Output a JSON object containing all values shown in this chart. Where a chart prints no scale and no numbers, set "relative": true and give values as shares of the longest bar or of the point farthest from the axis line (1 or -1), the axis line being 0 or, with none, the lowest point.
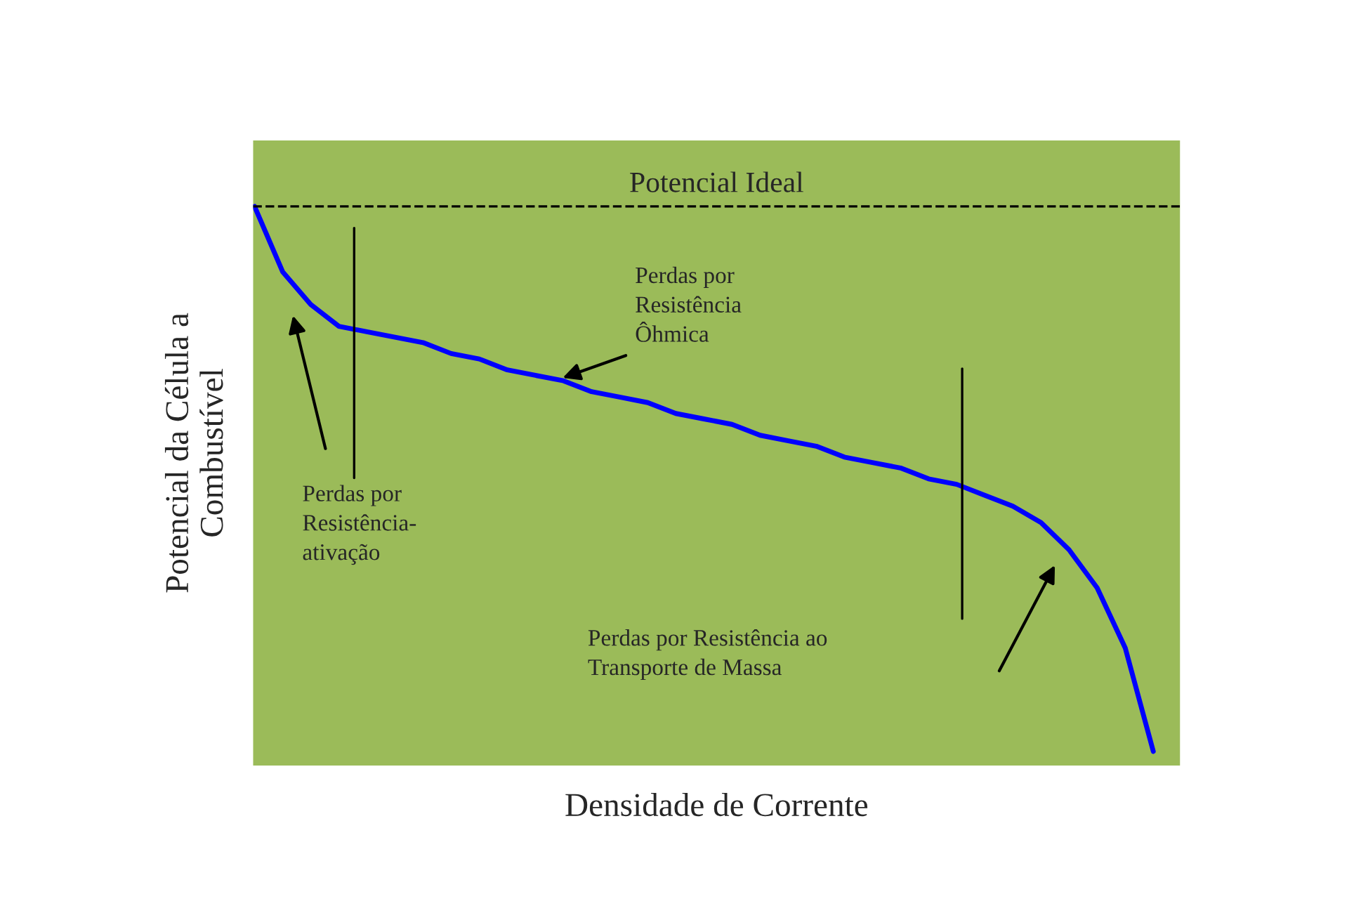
{
  "chart_data": {
    "type": "line",
    "relative": true,
    "xlabel": "Densidade de Corrente",
    "ylabel": "Potencial da Célula a\nCombustível",
    "categories": [
      null,
      null,
      null,
      null,
      null,
      null,
      null,
      null,
      null,
      null,
      null,
      null,
      null,
      null,
      null,
      null,
      null,
      null,
      null,
      null,
      null,
      null,
      null,
      null,
      null,
      null,
      null,
      null,
      null,
      null,
      null,
      null,
      null
    ],
    "series": [
      {
        "color": "#0000ff",
        "values": [
          1.0,
          0.88,
          0.82,
          0.78,
          0.77,
          0.76,
          0.75,
          0.73,
          0.72,
          0.7,
          0.69,
          0.68,
          0.66,
          0.65,
          0.64,
          0.62,
          0.61,
          0.6,
          0.58,
          0.57,
          0.56,
          0.54,
          0.53,
          0.52,
          0.5,
          0.49,
          0.47,
          0.45,
          0.42,
          0.37,
          0.3,
          0.19,
          0.0
        ]
      }
    ],
    "ref_lines": [
      {
        "axis": "y",
        "value": 1.0,
        "label": "Potencial Ideal",
        "color": "#000000",
        "line_style": "dashed"
      }
    ],
    "annotations": [
      "Perdas por\nResistência-\nativação",
      "Perdas por\nResistência\nÔhmica",
      "Perdas por Resistência ao\nTransporte de Massa"
    ],
    "legend": false,
    "marker": "none",
    "line_style": "solid"
  }
}
